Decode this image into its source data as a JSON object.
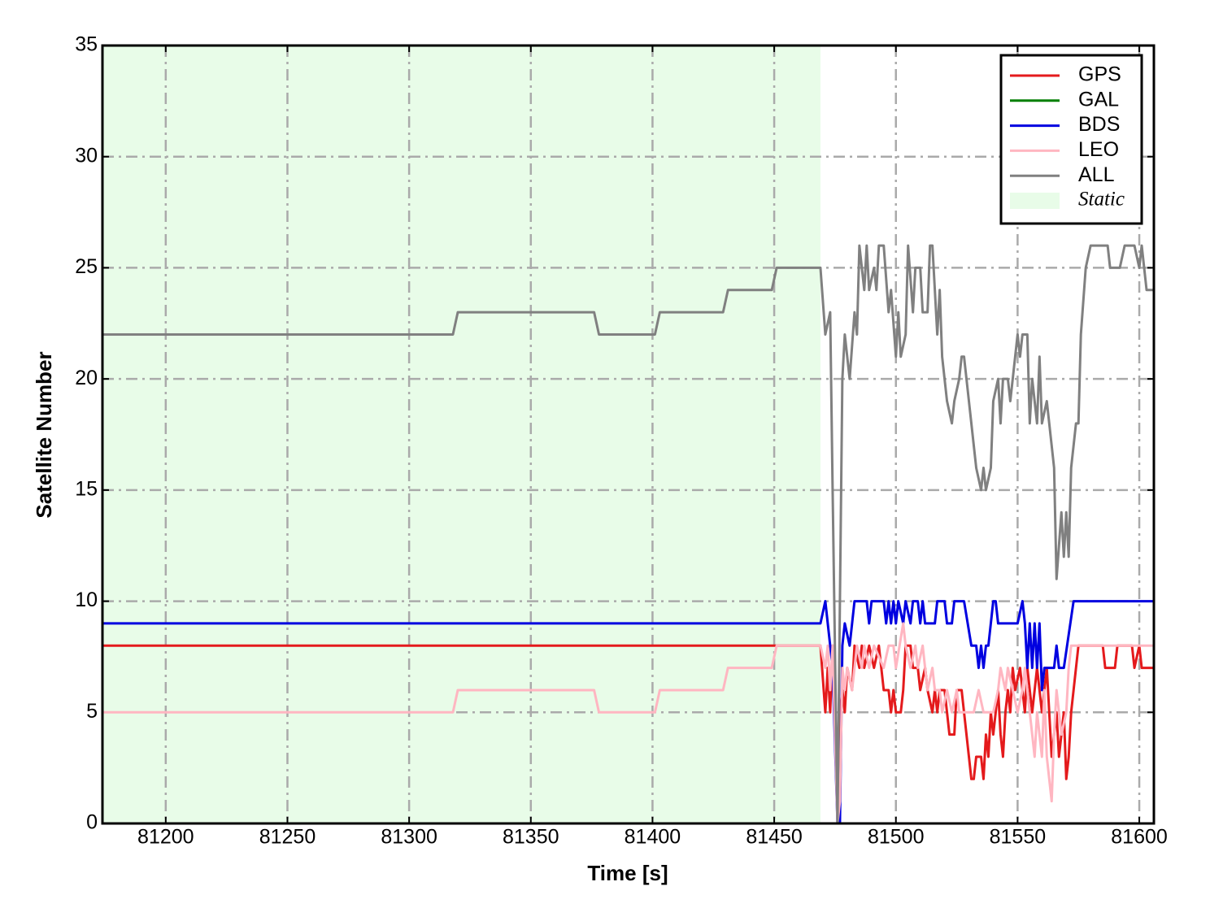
{
  "chart_data": {
    "type": "line",
    "xlabel": "Time [s]",
    "ylabel": "Satellite Number",
    "xlim": [
      81174,
      81606
    ],
    "ylim": [
      0,
      35
    ],
    "xticks": [
      81200,
      81250,
      81300,
      81350,
      81400,
      81450,
      81500,
      81550,
      81600
    ],
    "yticks": [
      0,
      5,
      10,
      15,
      20,
      25,
      30,
      35
    ],
    "grid": true,
    "legend": "upper right",
    "shade": {
      "label": "Static",
      "color": "#e8fce8",
      "x": [
        81174,
        81469
      ]
    },
    "series": [
      {
        "name": "GPS",
        "color": "#e41a1c",
        "x": [
          81174,
          81469,
          81471,
          81472,
          81473,
          81474,
          81475,
          81476,
          81477,
          81478,
          81479,
          81480,
          81482,
          81483,
          81485,
          81486,
          81487,
          81489,
          81491,
          81493,
          81495,
          81497,
          81498,
          81499,
          81500,
          81502,
          81503,
          81504,
          81506,
          81507,
          81509,
          81510,
          81512,
          81513,
          81515,
          81516,
          81517,
          81518,
          81520,
          81521,
          81522,
          81524,
          81525,
          81527,
          81528,
          81530,
          81531,
          81532,
          81533,
          81535,
          81536,
          81537,
          81538,
          81539,
          81540,
          81541,
          81542,
          81543,
          81544,
          81545,
          81546,
          81547,
          81548,
          81549,
          81551,
          81552,
          81553,
          81554,
          81555,
          81556,
          81557,
          81558,
          81560,
          81561,
          81562,
          81563,
          81564,
          81566,
          81567,
          81568,
          81569,
          81570,
          81571,
          81572,
          81573,
          81575,
          81585,
          81586,
          81590,
          81591,
          81597,
          81598,
          81600,
          81601,
          81606
        ],
        "values": [
          8,
          8,
          5,
          7,
          5,
          8,
          6,
          1,
          5,
          6,
          5,
          7,
          6,
          8,
          7,
          8,
          7,
          8,
          7,
          8,
          6,
          6,
          5,
          6,
          5,
          5,
          6,
          8,
          8,
          7,
          7,
          6,
          7,
          6,
          5,
          6,
          5,
          6,
          6,
          5,
          4,
          4,
          6,
          6,
          5,
          3,
          2,
          2,
          3,
          3,
          2,
          4,
          3,
          5,
          4,
          5,
          6,
          4,
          3,
          5,
          6,
          5,
          7,
          6,
          7,
          6,
          5,
          7,
          6,
          5,
          6,
          7,
          5,
          6,
          7,
          5,
          3,
          5,
          3,
          4,
          5,
          2,
          3,
          5,
          6,
          8,
          8,
          7,
          7,
          8,
          8,
          7,
          8,
          7,
          7
        ]
      },
      {
        "name": "GAL",
        "color": "#007f00",
        "x": [
          81174,
          81606
        ],
        "values": [
          0,
          0
        ]
      },
      {
        "name": "BDS",
        "color": "#0000e0",
        "x": [
          81174,
          81469,
          81471,
          81472,
          81474,
          81476,
          81477,
          81478,
          81479,
          81481,
          81482,
          81483,
          81488,
          81489,
          81490,
          81495,
          81496,
          81497,
          81498,
          81499,
          81500,
          81501,
          81503,
          81504,
          81506,
          81507,
          81509,
          81510,
          81511,
          81512,
          81516,
          81517,
          81520,
          81521,
          81523,
          81524,
          81528,
          81531,
          81533,
          81534,
          81535,
          81536,
          81537,
          81538,
          81540,
          81541,
          81542,
          81550,
          81552,
          81553,
          81554,
          81555,
          81556,
          81557,
          81558,
          81559,
          81560,
          81561,
          81565,
          81566,
          81567,
          81569,
          81573,
          81606
        ],
        "values": [
          9,
          9,
          10,
          9,
          7,
          0,
          0,
          8,
          9,
          8,
          9,
          10,
          10,
          9,
          10,
          10,
          9,
          10,
          9,
          10,
          9,
          10,
          9,
          10,
          9,
          10,
          10,
          9,
          10,
          9,
          9,
          10,
          10,
          9,
          9,
          10,
          10,
          8,
          8,
          7,
          8,
          7,
          8,
          8,
          10,
          10,
          9,
          9,
          10,
          9,
          7,
          9,
          7,
          9,
          7,
          9,
          6,
          7,
          7,
          8,
          7,
          7,
          10,
          10
        ]
      },
      {
        "name": "LEO",
        "color": "#ffb6c1",
        "x": [
          81174,
          81318,
          81320,
          81376,
          81378,
          81401,
          81403,
          81429,
          81431,
          81449,
          81451,
          81469,
          81471,
          81472,
          81473,
          81474,
          81476,
          81477,
          81478,
          81479,
          81480,
          81482,
          81483,
          81484,
          81486,
          81487,
          81489,
          81491,
          81495,
          81497,
          81499,
          81500,
          81503,
          81504,
          81506,
          81508,
          81509,
          81511,
          81512,
          81513,
          81515,
          81516,
          81518,
          81519,
          81521,
          81523,
          81525,
          81526,
          81532,
          81534,
          81536,
          81540,
          81542,
          81543,
          81545,
          81546,
          81548,
          81550,
          81552,
          81553,
          81554,
          81555,
          81556,
          81557,
          81558,
          81560,
          81561,
          81562,
          81563,
          81564,
          81565,
          81566,
          81568,
          81570,
          81571,
          81572,
          81606
        ],
        "values": [
          5,
          5,
          6,
          6,
          5,
          5,
          6,
          6,
          7,
          7,
          8,
          8,
          7,
          8,
          6,
          8,
          0,
          1,
          7,
          6,
          7,
          6,
          7,
          8,
          7,
          8,
          7,
          8,
          7,
          8,
          8,
          7,
          9,
          8,
          7,
          8,
          7,
          8,
          7,
          6,
          7,
          6,
          6,
          5,
          6,
          5,
          6,
          5,
          5,
          6,
          5,
          5,
          6,
          7,
          6,
          7,
          6,
          5,
          6,
          7,
          6,
          5,
          4,
          3,
          5,
          3,
          6,
          3,
          2,
          1,
          4,
          6,
          4,
          5,
          7,
          8,
          8
        ]
      },
      {
        "name": "ALL",
        "color": "#808080",
        "x": [
          81174,
          81318,
          81320,
          81376,
          81378,
          81401,
          81403,
          81429,
          81431,
          81449,
          81451,
          81469,
          81471,
          81473,
          81474,
          81476,
          81478,
          81479,
          81481,
          81483,
          81484,
          81485,
          81487,
          81488,
          81489,
          81491,
          81492,
          81493,
          81495,
          81497,
          81498,
          81500,
          81501,
          81502,
          81504,
          81505,
          81507,
          81508,
          81510,
          81511,
          81513,
          81514,
          81515,
          81517,
          81518,
          81519,
          81521,
          81523,
          81524,
          81526,
          81527,
          81528,
          81530,
          81532,
          81533,
          81535,
          81536,
          81537,
          81539,
          81540,
          81542,
          81543,
          81544,
          81546,
          81547,
          81548,
          81550,
          81551,
          81552,
          81554,
          81555,
          81556,
          81558,
          81559,
          81560,
          81562,
          81563,
          81565,
          81566,
          81568,
          81569,
          81570,
          81571,
          81572,
          81574,
          81575,
          81576,
          81578,
          81580,
          81587,
          81588,
          81592,
          81594,
          81598,
          81600,
          81601,
          81603,
          81606
        ],
        "values": [
          22,
          22,
          23,
          23,
          22,
          22,
          23,
          23,
          24,
          24,
          25,
          25,
          22,
          23,
          15,
          0,
          20,
          22,
          20,
          23,
          22,
          26,
          24,
          26,
          24,
          25,
          24,
          26,
          26,
          23,
          24,
          21,
          23,
          21,
          22,
          26,
          23,
          25,
          25,
          23,
          23,
          26,
          26,
          22,
          24,
          21,
          19,
          18,
          19,
          20,
          21,
          21,
          19,
          17,
          16,
          15,
          16,
          15,
          16,
          19,
          20,
          18,
          20,
          20,
          19,
          20,
          22,
          21,
          22,
          22,
          18,
          20,
          18,
          21,
          18,
          19,
          18,
          16,
          11,
          14,
          12,
          14,
          12,
          16,
          18,
          18,
          22,
          25,
          26,
          26,
          25,
          25,
          26,
          26,
          25,
          26,
          24,
          24
        ]
      }
    ]
  }
}
